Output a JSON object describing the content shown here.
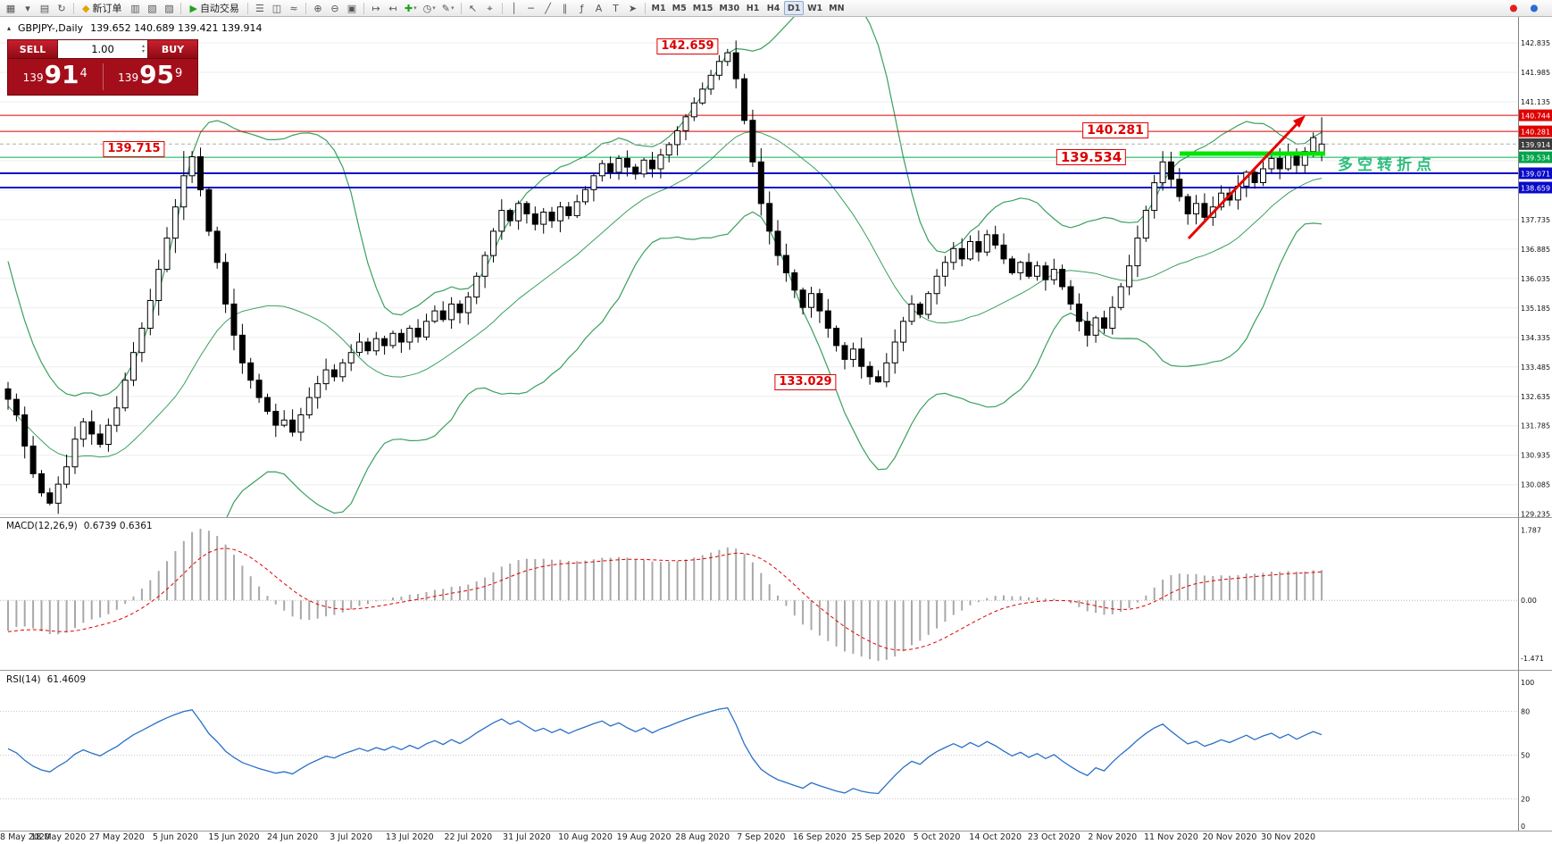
{
  "header": {
    "collapse_icon": "▴",
    "symbol_period": "GBPJPY-,Daily",
    "ohlc": "139.652 140.689 139.421 139.914"
  },
  "trade": {
    "sell_label": "SELL",
    "buy_label": "BUY",
    "volume": "1.00",
    "spin_up": "▴",
    "spin_down": "▾",
    "sell_prefix": "139",
    "sell_big": "91",
    "sell_sup": "4",
    "buy_prefix": "139",
    "buy_big": "95",
    "buy_sup": "9"
  },
  "toolbar": {
    "groups": [
      {
        "items": [
          {
            "name": "new-chart-button",
            "glyph": "▦"
          },
          {
            "name": "new-chart-dropdown",
            "glyph": "▾"
          },
          {
            "name": "profiles-button",
            "glyph": "▤"
          },
          {
            "name": "refresh-button",
            "glyph": "↻"
          }
        ]
      },
      {
        "items": [
          {
            "name": "new-order-button",
            "glyph": "◆",
            "glyph_color": "#e2a400",
            "label": "新订单"
          },
          {
            "name": "market-watch-button",
            "glyph": "▥"
          },
          {
            "name": "navigator-button",
            "glyph": "▧"
          },
          {
            "name": "terminal-button",
            "glyph": "▨"
          }
        ]
      },
      {
        "items": [
          {
            "name": "autotrading-button",
            "glyph": "▶",
            "glyph_color": "#21a121",
            "label": "自动交易"
          }
        ]
      },
      {
        "items": [
          {
            "name": "bar-chart-button",
            "glyph": "☰"
          },
          {
            "name": "candlestick-chart-button",
            "glyph": "◫"
          },
          {
            "name": "line-chart-button",
            "glyph": "≈"
          }
        ]
      },
      {
        "items": [
          {
            "name": "zoom-in-button",
            "glyph": "⊕"
          },
          {
            "name": "zoom-out-button",
            "glyph": "⊖"
          },
          {
            "name": "tile-windows-button",
            "glyph": "▣"
          }
        ]
      },
      {
        "items": [
          {
            "name": "auto-scroll-button",
            "glyph": "↦"
          },
          {
            "name": "chart-shift-button",
            "glyph": "↤"
          },
          {
            "name": "indicators-button",
            "glyph": "✚",
            "glyph_color": "#21a121",
            "suffix": "▾"
          },
          {
            "name": "periods-button",
            "glyph": "◷",
            "suffix": "▾"
          },
          {
            "name": "templates-button",
            "glyph": "✎",
            "suffix": "▾"
          }
        ]
      },
      {
        "items": [
          {
            "name": "cursor-button",
            "glyph": "↖"
          },
          {
            "name": "crosshair-button",
            "glyph": "⌖"
          }
        ]
      },
      {
        "items": [
          {
            "name": "vertical-line-button",
            "glyph": "│"
          },
          {
            "name": "horizontal-line-button",
            "glyph": "─"
          },
          {
            "name": "trendline-button",
            "glyph": "╱"
          },
          {
            "name": "channel-button",
            "glyph": "∥"
          },
          {
            "name": "fibonacci-button",
            "glyph": "ƒ"
          },
          {
            "name": "text-button",
            "glyph": "A"
          },
          {
            "name": "label-button",
            "glyph": "T"
          },
          {
            "name": "arrows-button",
            "glyph": "➤"
          }
        ]
      },
      {
        "type": "timeframes",
        "items": [
          {
            "name": "timeframe-m1",
            "label": "M1"
          },
          {
            "name": "timeframe-m5",
            "label": "M5"
          },
          {
            "name": "timeframe-m15",
            "label": "M15"
          },
          {
            "name": "timeframe-m30",
            "label": "M30"
          },
          {
            "name": "timeframe-h1",
            "label": "H1"
          },
          {
            "name": "timeframe-h4",
            "label": "H4"
          },
          {
            "name": "timeframe-d1",
            "label": "D1",
            "active": true
          },
          {
            "name": "timeframe-w1",
            "label": "W1"
          },
          {
            "name": "timeframe-mn",
            "label": "MN"
          }
        ]
      }
    ],
    "right_icons": [
      {
        "name": "notification-badge-icon",
        "glyph": "●",
        "glyph_color": "#e02020"
      },
      {
        "name": "community-icon",
        "glyph": "●",
        "glyph_color": "#2b6cd4"
      }
    ]
  },
  "price_axis": {
    "plain": [
      142.835,
      141.985,
      141.135,
      137.735,
      136.885,
      136.035,
      135.185,
      134.335,
      133.485,
      132.635,
      131.785,
      130.935,
      130.085,
      129.235
    ],
    "lines": [
      {
        "price": 140.744,
        "color": "#e00000",
        "width": 1,
        "dash": null,
        "tag_color": "#e00000"
      },
      {
        "price": 140.281,
        "color": "#e00000",
        "width": 1,
        "dash": null,
        "tag_color": "#e00000"
      },
      {
        "price": 139.914,
        "color": "#b0b0b0",
        "width": 1,
        "dash": "4,3",
        "tag_color": "#3c3c3c"
      },
      {
        "price": 139.534,
        "color": "#00b050",
        "width": 1,
        "dash": null,
        "tag_color": "#00a44a"
      },
      {
        "price": 139.071,
        "color": "#0a0ac8",
        "width": 2,
        "dash": null,
        "tag_color": "#0a0ac8"
      },
      {
        "price": 138.659,
        "color": "#0a0ac8",
        "width": 2,
        "dash": null,
        "tag_color": "#0a0ac8"
      }
    ]
  },
  "macd": {
    "label": "MACD(12,26,9)",
    "values": "0.6739 0.6361",
    "axis": [
      "1.787",
      "0.00",
      "-1.471"
    ]
  },
  "rsi": {
    "label": "RSI(14)",
    "values": "61.4609",
    "axis": [
      "100",
      "80",
      "50",
      "20",
      "0"
    ]
  },
  "annotations": {
    "callouts": [
      {
        "text": "142.659"
      },
      {
        "text": "139.715"
      },
      {
        "text": "140.281"
      },
      {
        "text": "139.534"
      },
      {
        "text": "133.029"
      }
    ],
    "note": "多空转折点",
    "trend_arrow_color": "#e80000",
    "support_segment_color": "#00e400"
  },
  "chart_data": {
    "type": "candlestick",
    "symbol": "GBPJPY-",
    "period": "Daily",
    "ohlc_current": {
      "open": 139.652,
      "high": 140.689,
      "low": 139.421,
      "close": 139.914
    },
    "ylim": [
      129.235,
      142.835
    ],
    "x_axis_dates": [
      {
        "index": 0,
        "label": "8 May 2020"
      },
      {
        "index": 6,
        "label": "18 May 2020"
      },
      {
        "index": 13,
        "label": "27 May 2020"
      },
      {
        "index": 20,
        "label": "5 Jun 2020"
      },
      {
        "index": 27,
        "label": "15 Jun 2020"
      },
      {
        "index": 34,
        "label": "24 Jun 2020"
      },
      {
        "index": 41,
        "label": "3 Jul 2020"
      },
      {
        "index": 48,
        "label": "13 Jul 2020"
      },
      {
        "index": 55,
        "label": "22 Jul 2020"
      },
      {
        "index": 62,
        "label": "31 Jul 2020"
      },
      {
        "index": 69,
        "label": "10 Aug 2020"
      },
      {
        "index": 76,
        "label": "19 Aug 2020"
      },
      {
        "index": 83,
        "label": "28 Aug 2020"
      },
      {
        "index": 90,
        "label": "7 Sep 2020"
      },
      {
        "index": 97,
        "label": "16 Sep 2020"
      },
      {
        "index": 104,
        "label": "25 Sep 2020"
      },
      {
        "index": 111,
        "label": "5 Oct 2020"
      },
      {
        "index": 118,
        "label": "14 Oct 2020"
      },
      {
        "index": 125,
        "label": "23 Oct 2020"
      },
      {
        "index": 132,
        "label": "2 Nov 2020"
      },
      {
        "index": 139,
        "label": "11 Nov 2020"
      },
      {
        "index": 146,
        "label": "20 Nov 2020"
      },
      {
        "index": 153,
        "label": "30 Nov 2020"
      }
    ],
    "closes": [
      132.55,
      132.1,
      131.2,
      130.4,
      129.85,
      129.55,
      130.1,
      130.6,
      131.4,
      131.9,
      131.55,
      131.25,
      131.8,
      132.3,
      133.1,
      133.9,
      134.6,
      135.4,
      136.3,
      137.2,
      138.1,
      139.0,
      139.55,
      138.6,
      137.4,
      136.5,
      135.3,
      134.4,
      133.6,
      133.1,
      132.6,
      132.2,
      131.8,
      131.95,
      131.6,
      132.1,
      132.6,
      133.0,
      133.4,
      133.2,
      133.6,
      133.9,
      134.2,
      133.95,
      134.3,
      134.1,
      134.45,
      134.2,
      134.6,
      134.35,
      134.8,
      135.1,
      134.85,
      135.3,
      135.05,
      135.5,
      136.1,
      136.7,
      137.4,
      138.0,
      137.7,
      138.2,
      137.9,
      137.6,
      137.95,
      137.7,
      138.1,
      137.85,
      138.25,
      138.6,
      139.0,
      139.35,
      139.1,
      139.5,
      139.25,
      139.05,
      139.45,
      139.2,
      139.6,
      139.9,
      140.3,
      140.7,
      141.1,
      141.5,
      141.9,
      142.3,
      142.55,
      141.8,
      140.6,
      139.4,
      138.2,
      137.4,
      136.7,
      136.2,
      135.7,
      135.2,
      135.6,
      135.1,
      134.6,
      134.1,
      133.7,
      134.0,
      133.5,
      133.2,
      133.05,
      133.6,
      134.2,
      134.8,
      135.3,
      135.0,
      135.6,
      136.1,
      136.5,
      136.9,
      136.6,
      137.1,
      136.8,
      137.3,
      137.0,
      136.6,
      136.2,
      136.5,
      136.1,
      136.4,
      136.0,
      136.3,
      135.8,
      135.3,
      134.8,
      134.4,
      134.9,
      134.6,
      135.2,
      135.8,
      136.4,
      137.2,
      138.0,
      138.8,
      139.4,
      138.9,
      138.4,
      137.9,
      138.2,
      137.8,
      138.1,
      138.5,
      138.3,
      138.7,
      139.1,
      138.8,
      139.2,
      139.5,
      139.2,
      139.6,
      139.3,
      139.7,
      140.1,
      139.914
    ],
    "candle_overrides": {
      "21": {
        "high": 139.715
      },
      "86": {
        "high": 142.659
      },
      "104": {
        "low": 133.029
      },
      "157": {
        "open": 139.652,
        "high": 140.689,
        "low": 139.421,
        "close": 139.914
      }
    },
    "indicators": {
      "bollinger": {
        "period": 20,
        "deviation": 2
      },
      "macd": {
        "fast": 12,
        "slow": 26,
        "signal": 9,
        "current": [
          0.6739,
          0.6361
        ]
      },
      "rsi": {
        "period": 14,
        "current": 61.4609
      }
    },
    "style": {
      "bull": "#ffffff",
      "bear": "#000000",
      "wick": "#000000",
      "bollinger": "#3aa05e",
      "grid": "#ededed",
      "macd_hist": "#a8a8a8",
      "macd_signal": "#e00000",
      "rsi_line": "#2970c8",
      "rsi_levels": [
        80,
        50,
        20
      ]
    }
  }
}
